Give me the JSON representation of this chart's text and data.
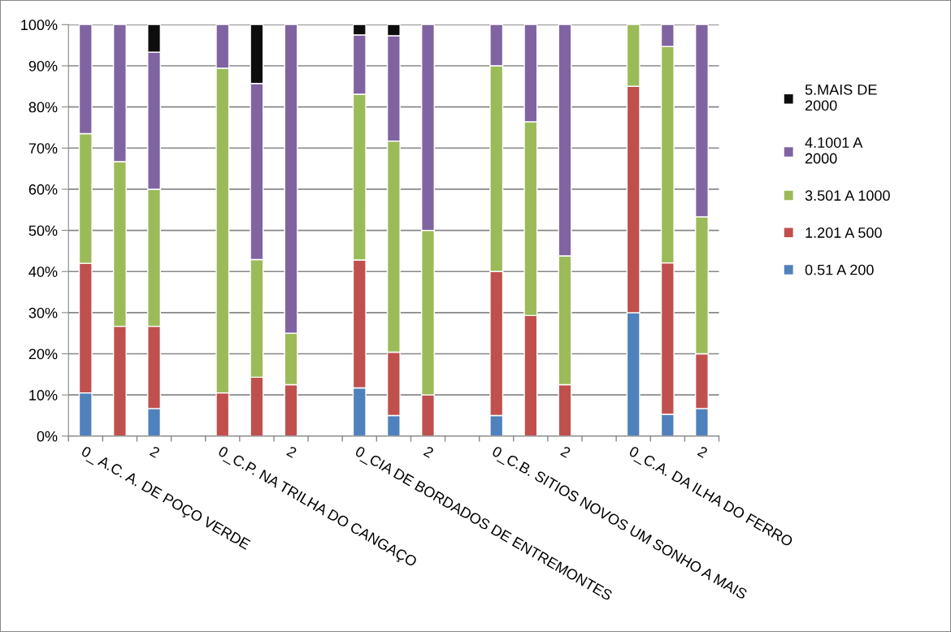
{
  "chart_data": {
    "type": "bar",
    "stacked": true,
    "categories": [
      "0_ A.C. A. DE POÇO VERDE",
      null,
      "2",
      null,
      "0_C.P. NA TRILHA DO CANGAÇO",
      null,
      "2",
      null,
      "0_CIA DE BORDADOS DE ENTREMONTES",
      null,
      "2",
      null,
      "0_C.B. SITIOS NOVOS UM SONHO A MAIS",
      null,
      "2",
      null,
      "0_C.A. DA ILHA DO FERRO",
      null,
      "2"
    ],
    "series": [
      {
        "name": "0.51 A 200",
        "color": "#4f81bd",
        "values": [
          10.5,
          0,
          6.7,
          null,
          0,
          0,
          0,
          null,
          11.7,
          5.0,
          0,
          null,
          5.0,
          0,
          0,
          null,
          30,
          5.3,
          6.7
        ]
      },
      {
        "name": "1.201 A 500",
        "color": "#c0504d",
        "values": [
          31.5,
          26.7,
          20,
          null,
          10.5,
          14.3,
          12.5,
          null,
          31.1,
          15.4,
          10,
          null,
          35,
          29.3,
          12.5,
          null,
          55,
          36.8,
          13.3
        ]
      },
      {
        "name": "3.501 A 1000",
        "color": "#9bbb59",
        "values": [
          31.5,
          40,
          33.3,
          null,
          78.9,
          28.6,
          12.5,
          null,
          40.3,
          51.3,
          40,
          null,
          50,
          47.1,
          31.3,
          null,
          15,
          52.6,
          33.3
        ]
      },
      {
        "name": "4.1001 A\n2000",
        "color": "#8064a2",
        "values": [
          26.5,
          33.3,
          33.3,
          null,
          10.6,
          42.8,
          75,
          null,
          14.4,
          25.6,
          50,
          null,
          10,
          23.6,
          56.2,
          null,
          0,
          5.3,
          46.7
        ]
      },
      {
        "name": "5.MAIS DE\n2000",
        "color": "#0d0d0d",
        "values": [
          0,
          0,
          6.7,
          null,
          0,
          14.3,
          0,
          null,
          2.5,
          2.7,
          0,
          null,
          0,
          0,
          0,
          null,
          0,
          0,
          0
        ]
      }
    ],
    "ylim": [
      0,
      100
    ],
    "yticks": [
      {
        "value": 0,
        "label": "0%"
      },
      {
        "value": 10,
        "label": "10%"
      },
      {
        "value": 20,
        "label": "20%"
      },
      {
        "value": 30,
        "label": "30%"
      },
      {
        "value": 40,
        "label": "40%"
      },
      {
        "value": 50,
        "label": "50%"
      },
      {
        "value": 60,
        "label": "60%"
      },
      {
        "value": 70,
        "label": "70%"
      },
      {
        "value": 80,
        "label": "80%"
      },
      {
        "value": 90,
        "label": "90%"
      },
      {
        "value": 100,
        "label": "100%"
      }
    ],
    "grid": "y",
    "legend": "right"
  }
}
